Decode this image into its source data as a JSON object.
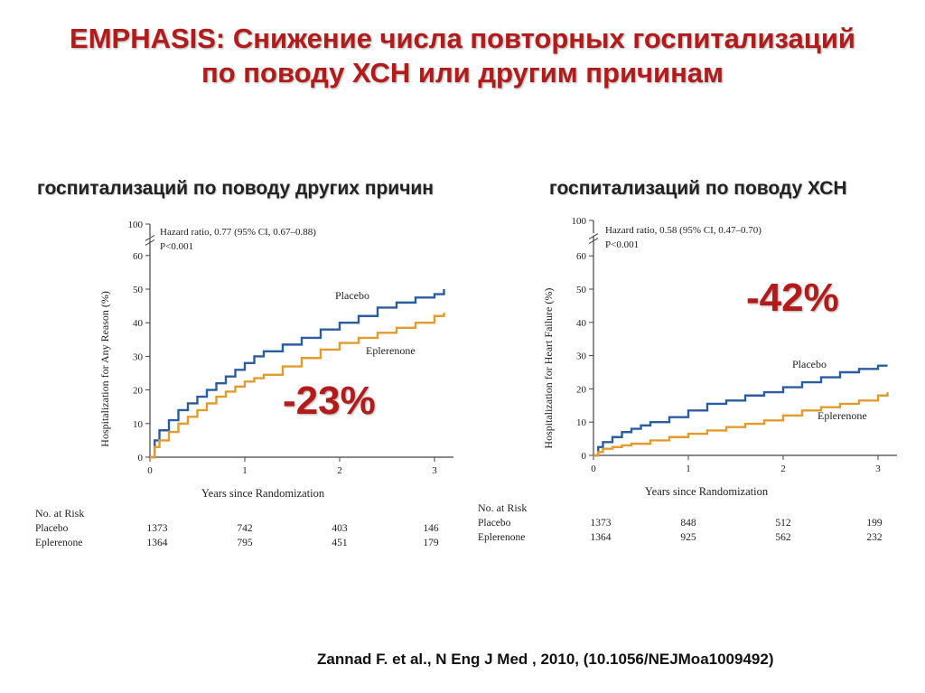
{
  "title": {
    "line1": "EMPHASIS: Снижение числа повторных госпитализаций",
    "line2": "по поводу ХСН или другим причинам"
  },
  "citation": "Zannad F. et al., N Eng J Med , 2010, (10.1056/NEJMoa1009492)",
  "colors": {
    "placebo": "#2a5d9f",
    "eplerenone": "#e39b2c",
    "accent": "#b31b1b"
  },
  "chart_data": [
    {
      "type": "line",
      "heading": "госпитализаций по поводу других причин",
      "reduction_label": "-23%",
      "annotation": {
        "line1": "Hazard ratio, 0.77 (95% CI, 0.67–0.88)",
        "line2": "P<0.001"
      },
      "xlabel": "Years since Randomization",
      "ylabel": "Hospitalization for Any Reason (%)",
      "xlim": [
        0,
        3.2
      ],
      "ylim": [
        0,
        100
      ],
      "y_axis_break": true,
      "x_ticks": [
        "0",
        "1",
        "2",
        "3"
      ],
      "y_ticks": [
        "0",
        "10",
        "20",
        "30",
        "40",
        "50",
        "60",
        "100"
      ],
      "series": [
        {
          "name": "Placebo",
          "color": "#2a5d9f",
          "x": [
            0,
            0.05,
            0.1,
            0.2,
            0.3,
            0.4,
            0.5,
            0.6,
            0.7,
            0.8,
            0.9,
            1.0,
            1.1,
            1.2,
            1.4,
            1.6,
            1.8,
            2.0,
            2.2,
            2.4,
            2.6,
            2.8,
            3.0,
            3.1
          ],
          "y": [
            0,
            5,
            8,
            11,
            14,
            16,
            18,
            20,
            22,
            24,
            26,
            28,
            30,
            31.5,
            33.5,
            35.5,
            38,
            40,
            42,
            44.5,
            46,
            47.5,
            48.5,
            50
          ]
        },
        {
          "name": "Eplerenone",
          "color": "#e39b2c",
          "x": [
            0,
            0.05,
            0.1,
            0.2,
            0.3,
            0.4,
            0.5,
            0.6,
            0.7,
            0.8,
            0.9,
            1.0,
            1.1,
            1.2,
            1.4,
            1.6,
            1.8,
            2.0,
            2.2,
            2.4,
            2.6,
            2.8,
            3.0,
            3.1
          ],
          "y": [
            0,
            3,
            5,
            7.5,
            10,
            12,
            14,
            16,
            18,
            19.5,
            21,
            22.5,
            23.5,
            24.5,
            27,
            29.5,
            32,
            34,
            35.5,
            37,
            38.5,
            40,
            42,
            43
          ]
        }
      ],
      "risk_table": {
        "header": "No. at Risk",
        "rows": [
          {
            "label": "Placebo",
            "values": [
              "1373",
              "742",
              "403",
              "146"
            ]
          },
          {
            "label": "Eplerenone",
            "values": [
              "1364",
              "795",
              "451",
              "179"
            ]
          }
        ]
      }
    },
    {
      "type": "line",
      "heading": "госпитализаций по поводу ХСН",
      "reduction_label": "-42%",
      "annotation": {
        "line1": "Hazard ratio, 0.58 (95% CI, 0.47–0.70)",
        "line2": "P<0.001"
      },
      "xlabel": "Years since Randomization",
      "ylabel": "Hospitalization for Heart Failure (%)",
      "xlim": [
        0,
        3.2
      ],
      "ylim": [
        0,
        100
      ],
      "y_axis_break": true,
      "x_ticks": [
        "0",
        "1",
        "2",
        "3"
      ],
      "y_ticks": [
        "0",
        "10",
        "20",
        "30",
        "40",
        "50",
        "60",
        "100"
      ],
      "series": [
        {
          "name": "Placebo",
          "color": "#2a5d9f",
          "x": [
            0,
            0.05,
            0.1,
            0.2,
            0.3,
            0.4,
            0.5,
            0.6,
            0.8,
            1.0,
            1.2,
            1.4,
            1.6,
            1.8,
            2.0,
            2.2,
            2.4,
            2.6,
            2.8,
            3.0,
            3.1
          ],
          "y": [
            0,
            2.5,
            4,
            5.5,
            7,
            8,
            9,
            10,
            11.5,
            13.5,
            15.5,
            16.5,
            18,
            19,
            20.5,
            22,
            23.5,
            25,
            26,
            27,
            27
          ]
        },
        {
          "name": "Eplerenone",
          "color": "#e39b2c",
          "x": [
            0,
            0.05,
            0.1,
            0.2,
            0.3,
            0.4,
            0.6,
            0.8,
            1.0,
            1.2,
            1.4,
            1.6,
            1.8,
            2.0,
            2.2,
            2.4,
            2.6,
            2.8,
            3.0,
            3.1
          ],
          "y": [
            0,
            1,
            2,
            2.5,
            3,
            3.5,
            4.5,
            5.5,
            6.5,
            7.5,
            8.5,
            9.5,
            10.5,
            12,
            13.5,
            14.5,
            15.5,
            16.5,
            18,
            19
          ]
        }
      ],
      "risk_table": {
        "header": "No. at Risk",
        "rows": [
          {
            "label": "Placebo",
            "values": [
              "1373",
              "848",
              "512",
              "199"
            ]
          },
          {
            "label": "Eplerenone",
            "values": [
              "1364",
              "925",
              "562",
              "232"
            ]
          }
        ]
      }
    }
  ]
}
